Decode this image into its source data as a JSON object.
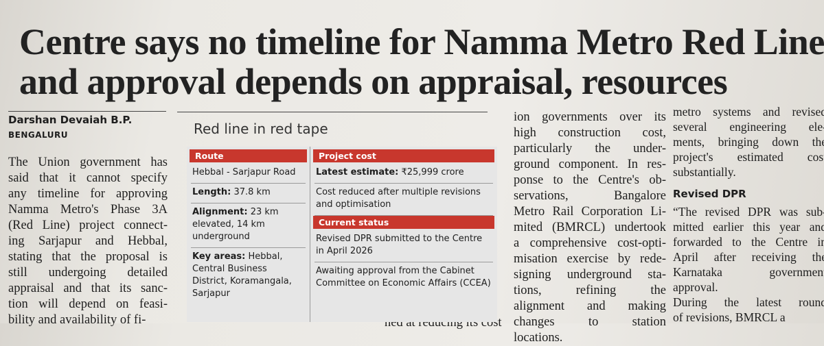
{
  "header": {
    "headline": [
      "Centre says no timeline for Namma Metro Red Line,",
      "and approval depends on appraisal, resources"
    ],
    "byline": "Darshan Devaiah B.P.",
    "dateline": "BENGALURU"
  },
  "body": {
    "column1": [
      "The Union government has",
      "said that it cannot specify",
      "any timeline for approving",
      "Namma Metro's Phase 3A",
      "(Red Line) project connect-",
      "ing Sarjapur and Hebbal,",
      "stating that the proposal is",
      "still undergoing detailed",
      "appraisal and that its sanc-",
      "tion will depend on feasi-",
      "bility and availability of fi-"
    ],
    "column2_fragment": "ned at reducing its cost",
    "column3": [
      "ion governments over its",
      "high construction cost,",
      "particularly the under-",
      "ground component. In res-",
      "ponse to the Centre's ob-",
      "servations, Bangalore",
      "Metro Rail Corporation Li-",
      "mited (BMRCL) undertook",
      "a comprehensive cost-opti-",
      "misation exercise by rede-",
      "signing underground sta-",
      "tions, refining the",
      "alignment and making",
      "changes to station",
      "locations."
    ],
    "column4_top": [
      "metro systems and revised",
      "several engineering ele-",
      "ments, bringing down the",
      "project's estimated cost",
      "substantially."
    ],
    "subhead": "Revised DPR",
    "column4_bottom": [
      "“The revised DPR was sub-",
      "mitted earlier this year and",
      "forwarded to the Centre in",
      "April after receiving the",
      "Karnataka government",
      "approval.",
      "During the latest round",
      "of revisions, BMRCL a"
    ]
  },
  "infobox": {
    "title": "Red line in red tape",
    "route": {
      "heading": "Route",
      "items": [
        {
          "text": "Hebbal - Sarjapur Road"
        },
        {
          "label": "Length:",
          "text": "37.8 km"
        },
        {
          "label": "Alignment:",
          "text": "23 km elevated, 14 km underground"
        },
        {
          "label": "Key areas:",
          "text": "Hebbal, Central Business District, Koramangala, Sarjapur"
        }
      ]
    },
    "project_cost": {
      "heading": "Project cost",
      "items": [
        {
          "label": "Latest estimate:",
          "text": "₹25,999 crore"
        },
        {
          "text": "Cost reduced after multiple revisions and optimisation"
        }
      ]
    },
    "current_status": {
      "heading": "Current status",
      "items": [
        {
          "text": "Revised DPR submitted to the Centre in April 2026"
        },
        {
          "text": "Awaiting approval from the Cabinet Committee on Economic Affairs (CCEA)"
        }
      ]
    }
  }
}
